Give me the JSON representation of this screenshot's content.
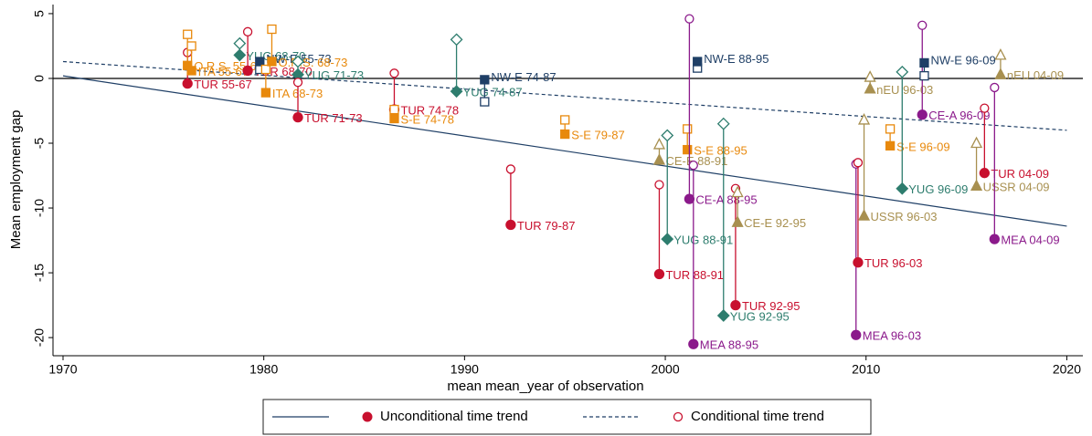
{
  "chart_data": {
    "type": "scatter",
    "x_label": "mean mean_year of observation",
    "y_label": "Mean employment gap",
    "xlim": [
      1969.5,
      2020.8
    ],
    "ylim": [
      -21.4,
      5.7
    ],
    "xticks": [
      1970,
      1980,
      1990,
      2000,
      2010,
      2020
    ],
    "yticks": [
      -20,
      -15,
      -10,
      -5,
      0,
      5
    ],
    "hline": 0,
    "legend_color": "#c8102e",
    "trend_lines": [
      {
        "name": "Unconditional time trend",
        "x": [
          1970,
          2020
        ],
        "values": [
          0.2,
          -11.4
        ],
        "color": "#1f3f66",
        "dashed": false
      },
      {
        "name": "Conditional time trend",
        "x": [
          1970,
          2020
        ],
        "values": [
          1.3,
          -4.0
        ],
        "color": "#1f3f66",
        "dashed": true
      }
    ],
    "points": [
      {
        "label": "TUR 55-67",
        "x": 1976.2,
        "unconditional": -0.4,
        "conditional": 2.0,
        "color": "#c8102e",
        "marker": "circle"
      },
      {
        "label": "O.R.S. 55-67",
        "x": 1976.2,
        "unconditional": 1.0,
        "conditional": 3.4,
        "color": "#e8890c",
        "marker": "square"
      },
      {
        "label": "ITA 55-67",
        "x": 1976.4,
        "unconditional": 0.6,
        "conditional": 2.5,
        "color": "#e8890c",
        "marker": "square"
      },
      {
        "label": "YUG 68-70",
        "x": 1978.8,
        "unconditional": 1.8,
        "conditional": 2.7,
        "color": "#2e7d6e",
        "marker": "diamond"
      },
      {
        "label": "TUR 68-70",
        "x": 1979.2,
        "unconditional": 0.6,
        "conditional": 3.6,
        "color": "#c8102e",
        "marker": "circle"
      },
      {
        "label": "NW-E 55-73",
        "x": 1979.8,
        "unconditional": 1.3,
        "conditional": 0.7,
        "color": "#1f3f66",
        "marker": "square"
      },
      {
        "label": "ITA 68-73",
        "x": 1980.1,
        "unconditional": -1.1,
        "conditional": 0.7,
        "color": "#e8890c",
        "marker": "square"
      },
      {
        "label": "O.R.S. 68-73",
        "x": 1980.4,
        "unconditional": 1.3,
        "conditional": 3.8,
        "color": "#e8890c",
        "marker": "square"
      },
      {
        "label": "YUG 71-73",
        "x": 1981.7,
        "unconditional": 0.3,
        "conditional": 1.3,
        "color": "#2e7d6e",
        "marker": "diamond"
      },
      {
        "label": "TUR 71-73",
        "x": 1981.7,
        "unconditional": -3.0,
        "conditional": -0.3,
        "color": "#c8102e",
        "marker": "circle"
      },
      {
        "label": "TUR 74-78",
        "x": 1986.5,
        "unconditional": -2.4,
        "conditional": 0.4,
        "color": "#c8102e",
        "marker": "circle"
      },
      {
        "label": "S-E 74-78",
        "x": 1986.5,
        "unconditional": -3.1,
        "conditional": -2.4,
        "color": "#e8890c",
        "marker": "square"
      },
      {
        "label": "YUG 74-87",
        "x": 1989.6,
        "unconditional": -1.0,
        "conditional": 3.0,
        "color": "#2e7d6e",
        "marker": "diamond"
      },
      {
        "label": "NW-E 74-87",
        "x": 1991.0,
        "unconditional": -0.1,
        "conditional": -1.8,
        "color": "#1f3f66",
        "marker": "square"
      },
      {
        "label": "TUR 79-87",
        "x": 1992.3,
        "unconditional": -11.3,
        "conditional": -7.0,
        "color": "#c8102e",
        "marker": "circle"
      },
      {
        "label": "S-E 79-87",
        "x": 1995.0,
        "unconditional": -4.3,
        "conditional": -3.2,
        "color": "#e8890c",
        "marker": "square"
      },
      {
        "label": "CE-E 88-91",
        "x": 1999.7,
        "unconditional": -6.3,
        "conditional": -5.1,
        "color": "#a89050",
        "marker": "triangle"
      },
      {
        "label": "TUR 88-91",
        "x": 1999.7,
        "unconditional": -15.1,
        "conditional": -8.2,
        "color": "#c8102e",
        "marker": "circle"
      },
      {
        "label": "YUG 88-91",
        "x": 2000.1,
        "unconditional": -12.4,
        "conditional": -4.4,
        "color": "#2e7d6e",
        "marker": "diamond"
      },
      {
        "label": "S-E 88-95",
        "x": 2001.1,
        "unconditional": -5.5,
        "conditional": -3.9,
        "color": "#e8890c",
        "marker": "square"
      },
      {
        "label": "CE-A 88-95",
        "x": 2001.2,
        "unconditional": -9.3,
        "conditional": 4.6,
        "color": "#8b1a8b",
        "marker": "circle"
      },
      {
        "label": "MEA 88-95",
        "x": 2001.4,
        "unconditional": -20.5,
        "conditional": -6.7,
        "color": "#8b1a8b",
        "marker": "circle"
      },
      {
        "label": "NW-E 88-95",
        "x": 2001.6,
        "unconditional": 1.3,
        "conditional": 0.8,
        "color": "#1f3f66",
        "marker": "square"
      },
      {
        "label": "YUG 92-95",
        "x": 2002.9,
        "unconditional": -18.3,
        "conditional": -3.5,
        "color": "#2e7d6e",
        "marker": "diamond"
      },
      {
        "label": "TUR 92-95",
        "x": 2003.5,
        "unconditional": -17.5,
        "conditional": -8.5,
        "color": "#c8102e",
        "marker": "circle"
      },
      {
        "label": "CE-E 92-95",
        "x": 2003.6,
        "unconditional": -11.1,
        "conditional": -8.8,
        "color": "#a89050",
        "marker": "triangle"
      },
      {
        "label": "MEA 96-03",
        "x": 2009.5,
        "unconditional": -19.8,
        "conditional": -6.6,
        "color": "#8b1a8b",
        "marker": "circle"
      },
      {
        "label": "TUR 96-03",
        "x": 2009.6,
        "unconditional": -14.2,
        "conditional": -6.5,
        "color": "#c8102e",
        "marker": "circle"
      },
      {
        "label": "USSR 96-03",
        "x": 2009.9,
        "unconditional": -10.6,
        "conditional": -3.2,
        "color": "#a89050",
        "marker": "triangle"
      },
      {
        "label": "nEU 96-03",
        "x": 2010.2,
        "unconditional": -0.8,
        "conditional": 0.1,
        "color": "#a89050",
        "marker": "triangle"
      },
      {
        "label": "S-E 96-09",
        "x": 2011.2,
        "unconditional": -5.2,
        "conditional": -3.9,
        "color": "#e8890c",
        "marker": "square"
      },
      {
        "label": "YUG 96-09",
        "x": 2011.8,
        "unconditional": -8.5,
        "conditional": 0.5,
        "color": "#2e7d6e",
        "marker": "diamond"
      },
      {
        "label": "CE-A 96-09",
        "x": 2012.8,
        "unconditional": -2.8,
        "conditional": 4.1,
        "color": "#8b1a8b",
        "marker": "circle"
      },
      {
        "label": "NW-E 96-09",
        "x": 2012.9,
        "unconditional": 1.2,
        "conditional": 0.2,
        "color": "#1f3f66",
        "marker": "square"
      },
      {
        "label": "USSR 04-09",
        "x": 2015.5,
        "unconditional": -8.3,
        "conditional": -5.0,
        "color": "#a89050",
        "marker": "triangle"
      },
      {
        "label": "TUR 04-09",
        "x": 2015.9,
        "unconditional": -7.3,
        "conditional": -2.3,
        "color": "#c8102e",
        "marker": "circle"
      },
      {
        "label": "MEA 04-09",
        "x": 2016.4,
        "unconditional": -12.4,
        "conditional": -0.7,
        "color": "#8b1a8b",
        "marker": "circle"
      },
      {
        "label": "nEU 04-09",
        "x": 2016.7,
        "unconditional": 0.3,
        "conditional": 1.8,
        "color": "#a89050",
        "marker": "triangle"
      }
    ]
  }
}
